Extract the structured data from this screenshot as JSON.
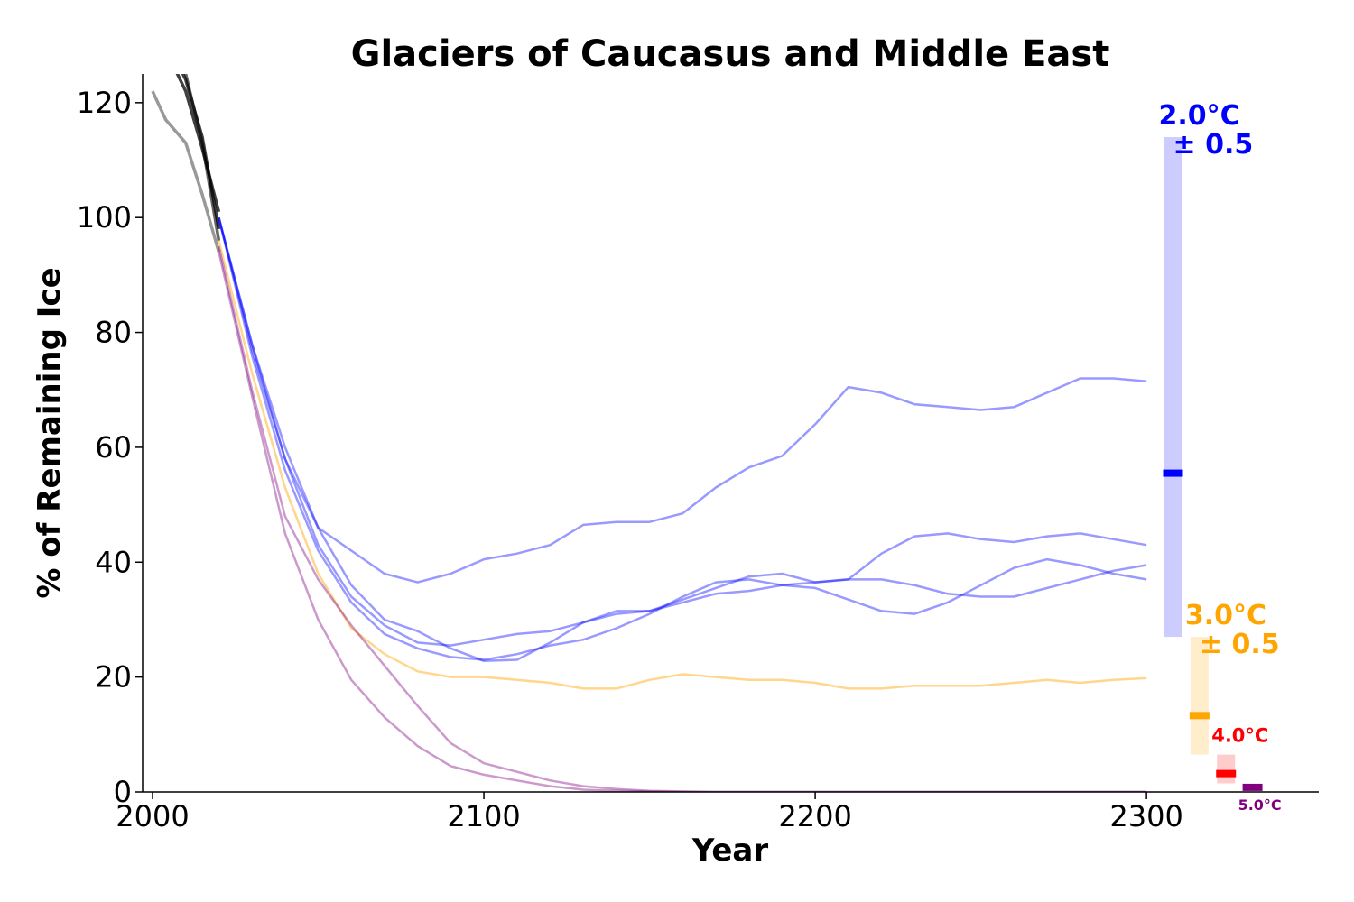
{
  "chart_data": {
    "type": "line",
    "title": "Glaciers of Caucasus and Middle East",
    "xlabel": "Year",
    "ylabel": "% of Remaining Ice",
    "xlim": [
      1997,
      2352
    ],
    "ylim": [
      0,
      125
    ],
    "xticks": [
      "2000",
      "2100",
      "2200",
      "2300"
    ],
    "yticks": [
      "0",
      "20",
      "40",
      "60",
      "80",
      "100",
      "120"
    ],
    "grid": false,
    "historical": [
      {
        "color": "#000000",
        "opacity": 0.75,
        "x": [
          2000,
          2005,
          2010,
          2015,
          2020
        ],
        "y": [
          130,
          128,
          122,
          112,
          101
        ]
      },
      {
        "color": "#000000",
        "opacity": 0.75,
        "x": [
          2000,
          2005,
          2010,
          2015,
          2020
        ],
        "y": [
          134,
          130,
          124,
          114,
          98
        ]
      },
      {
        "color": "#000000",
        "opacity": 0.6,
        "x": [
          2000,
          2005,
          2010,
          2015,
          2020
        ],
        "y": [
          136,
          132,
          125,
          113,
          96
        ]
      },
      {
        "color": "#000000",
        "opacity": 0.4,
        "x": [
          2000,
          2004,
          2010,
          2015,
          2020
        ],
        "y": [
          122,
          117,
          113,
          104,
          94
        ]
      }
    ],
    "series": [
      {
        "color": "#0000ff",
        "opacity": 0.4,
        "x": [
          2020,
          2030,
          2040,
          2050,
          2060,
          2070,
          2080,
          2090,
          2100,
          2110,
          2120,
          2130,
          2140,
          2150,
          2160,
          2170,
          2180,
          2190,
          2200,
          2210,
          2220,
          2230,
          2240,
          2250,
          2260,
          2270,
          2280,
          2290,
          2300
        ],
        "y": [
          100,
          78,
          60,
          46,
          42,
          38,
          36.5,
          38,
          40.5,
          41.5,
          43,
          46.5,
          47,
          47,
          48.5,
          53,
          56.5,
          58.5,
          64,
          70.5,
          69.5,
          67.5,
          67,
          66.5,
          67,
          69.5,
          72,
          72,
          71.5
        ]
      },
      {
        "color": "#0000ff",
        "opacity": 0.4,
        "x": [
          2020,
          2030,
          2040,
          2050,
          2060,
          2070,
          2080,
          2090,
          2100,
          2110,
          2120,
          2130,
          2140,
          2150,
          2160,
          2170,
          2180,
          2190,
          2200,
          2210,
          2220,
          2230,
          2240,
          2250,
          2260,
          2270,
          2280,
          2290,
          2300
        ],
        "y": [
          100,
          78,
          58,
          43,
          34,
          29,
          26,
          25.5,
          26.5,
          27.5,
          28,
          29.5,
          31,
          31.5,
          33,
          34.5,
          35,
          36,
          36.5,
          37,
          37,
          36,
          34.5,
          34,
          34,
          35.5,
          37,
          38.5,
          39.5
        ]
      },
      {
        "color": "#0000ff",
        "opacity": 0.4,
        "x": [
          2020,
          2030,
          2040,
          2050,
          2060,
          2070,
          2080,
          2090,
          2100,
          2110,
          2120,
          2130,
          2140,
          2150,
          2160,
          2170,
          2180,
          2190,
          2200,
          2210,
          2220,
          2230,
          2240,
          2250,
          2260,
          2270,
          2280,
          2290,
          2300
        ],
        "y": [
          100,
          77,
          58,
          46,
          36,
          30,
          28,
          25,
          22.8,
          23,
          26,
          29.5,
          31.5,
          31.5,
          33.5,
          35.5,
          37.5,
          38,
          36.5,
          37,
          41.5,
          44.5,
          45,
          44,
          43.5,
          44.5,
          45,
          44,
          43
        ]
      },
      {
        "color": "#0000ff",
        "opacity": 0.4,
        "x": [
          2020,
          2030,
          2040,
          2050,
          2060,
          2070,
          2080,
          2090,
          2100,
          2110,
          2120,
          2130,
          2140,
          2150,
          2160,
          2170,
          2180,
          2190,
          2200,
          2210,
          2220,
          2230,
          2240,
          2250,
          2260,
          2270,
          2280,
          2290,
          2300
        ],
        "y": [
          100,
          76,
          56,
          42,
          33,
          27.5,
          25,
          23.5,
          23,
          24,
          25.5,
          26.5,
          28.5,
          31,
          34,
          36.5,
          37,
          36,
          35.5,
          33.5,
          31.5,
          31,
          33,
          36,
          39,
          40.5,
          39.5,
          38,
          37
        ]
      },
      {
        "color": "#ffa500",
        "opacity": 0.45,
        "x": [
          2020,
          2030,
          2040,
          2050,
          2060,
          2070,
          2080,
          2090,
          2100,
          2110,
          2120,
          2130,
          2140,
          2150,
          2160,
          2170,
          2180,
          2190,
          2200,
          2210,
          2220,
          2230,
          2240,
          2250,
          2260,
          2270,
          2280,
          2290,
          2300
        ],
        "y": [
          96,
          73,
          53,
          38,
          28.5,
          24,
          21,
          20,
          20,
          19.5,
          19,
          18,
          18,
          19.5,
          20.5,
          20,
          19.5,
          19.5,
          19,
          18,
          18,
          18.5,
          18.5,
          18.5,
          19,
          19.5,
          19,
          19.5,
          19.8
        ]
      },
      {
        "color": "#800080",
        "opacity": 0.4,
        "x": [
          2020,
          2030,
          2040,
          2050,
          2060,
          2070,
          2080,
          2090,
          2100,
          2110,
          2120,
          2130,
          2140,
          2150,
          2160,
          2170,
          2180,
          2190,
          2200,
          2210,
          2220,
          2230,
          2240,
          2250,
          2260,
          2270,
          2280,
          2290,
          2300
        ],
        "y": [
          95,
          70,
          48,
          37,
          29,
          22,
          15,
          8.5,
          5,
          3.5,
          2,
          1,
          0.5,
          0.2,
          0.1,
          0,
          0,
          0,
          0,
          0,
          0,
          0,
          0,
          0,
          0,
          0,
          0,
          0,
          0
        ]
      },
      {
        "color": "#800080",
        "opacity": 0.4,
        "x": [
          2020,
          2030,
          2040,
          2050,
          2060,
          2070,
          2080,
          2090,
          2100,
          2110,
          2120,
          2130,
          2140,
          2150,
          2160,
          2170,
          2180,
          2190,
          2200,
          2210,
          2220,
          2230,
          2240,
          2250,
          2260,
          2270,
          2280,
          2290,
          2300
        ],
        "y": [
          94,
          69,
          45,
          30,
          19.5,
          13,
          8,
          4.5,
          3,
          2,
          1,
          0.4,
          0.2,
          0.1,
          0,
          0,
          0,
          0,
          0,
          0,
          0,
          0,
          0,
          0,
          0,
          0,
          0,
          0,
          0
        ]
      }
    ],
    "ranges": [
      {
        "label": "2.0°C",
        "sublabel": "± 0.5",
        "color": "#0000ff",
        "x": 2308,
        "low": 27,
        "high": 114,
        "median": 55.5
      },
      {
        "label": "3.0°C",
        "sublabel": "± 0.5",
        "color": "#ffa500",
        "x": 2316,
        "low": 6.5,
        "high": 27,
        "median": 13.3
      },
      {
        "label": "4.0°C",
        "color": "#ff0000",
        "x": 2324,
        "low": 1.5,
        "high": 6.5,
        "median": 3.2
      },
      {
        "label": "5.0°C",
        "color": "#800080",
        "x": 2332,
        "low": 0.3,
        "high": 1.3,
        "median": 0.8
      }
    ]
  }
}
